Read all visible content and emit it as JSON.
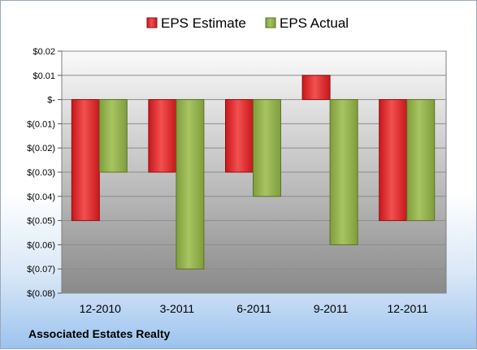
{
  "company": "Associated Estates Realty",
  "colors": {
    "estimate": "#c8171b",
    "estimate_light": "#f25050",
    "actual": "#7f9e3a",
    "actual_light": "#a8c463",
    "plot_top": "#fafafa",
    "plot_bottom": "#8a8a8a",
    "grid": "#8c8c8c"
  },
  "chart_data": {
    "type": "bar",
    "categories": [
      "12-2010",
      "3-2011",
      "6-2011",
      "9-2011",
      "12-2011"
    ],
    "series": [
      {
        "name": "EPS Estimate",
        "values": [
          -0.05,
          -0.03,
          -0.03,
          0.01,
          -0.05
        ]
      },
      {
        "name": "EPS Actual",
        "values": [
          -0.03,
          -0.07,
          -0.04,
          -0.06,
          -0.05
        ]
      }
    ],
    "title": "",
    "xlabel": "",
    "ylabel": "",
    "ylim": [
      -0.08,
      0.02
    ],
    "yticks": [
      0.02,
      0.01,
      0,
      -0.01,
      -0.02,
      -0.03,
      -0.04,
      -0.05,
      -0.06,
      -0.07,
      -0.08
    ],
    "ytick_labels": [
      "$0.02",
      "$0.01",
      "$-",
      "$(0.01)",
      "$(0.02)",
      "$(0.03)",
      "$(0.04)",
      "$(0.05)",
      "$(0.06)",
      "$(0.07)",
      "$(0.08)"
    ],
    "grid": true,
    "legend": "top"
  }
}
